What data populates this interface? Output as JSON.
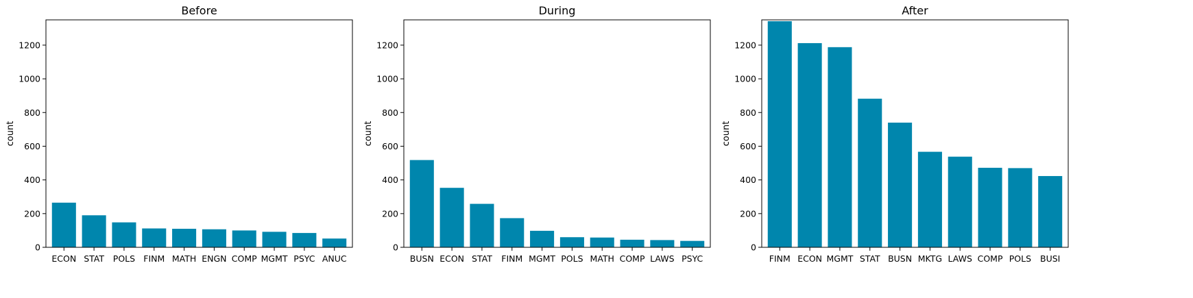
{
  "chart_data": [
    {
      "type": "bar",
      "title": "Before",
      "xlabel": "",
      "ylabel": "count",
      "ylim": [
        0,
        1350
      ],
      "yticks": [
        0,
        200,
        400,
        600,
        800,
        1000,
        1200
      ],
      "grid": false,
      "bar_color": "#0086AD",
      "categories": [
        "ECON",
        "STAT",
        "POLS",
        "FINM",
        "MATH",
        "ENGN",
        "COMP",
        "MGMT",
        "PSYC",
        "ANUC"
      ],
      "values": [
        265,
        190,
        148,
        112,
        110,
        107,
        100,
        92,
        85,
        52
      ]
    },
    {
      "type": "bar",
      "title": "During",
      "xlabel": "",
      "ylabel": "count",
      "ylim": [
        0,
        1350
      ],
      "yticks": [
        0,
        200,
        400,
        600,
        800,
        1000,
        1200
      ],
      "grid": false,
      "bar_color": "#0086AD",
      "categories": [
        "BUSN",
        "ECON",
        "STAT",
        "FINM",
        "MGMT",
        "POLS",
        "MATH",
        "COMP",
        "LAWS",
        "PSYC"
      ],
      "values": [
        518,
        353,
        258,
        173,
        98,
        60,
        58,
        45,
        43,
        38
      ]
    },
    {
      "type": "bar",
      "title": "After",
      "xlabel": "",
      "ylabel": "count",
      "ylim": [
        0,
        1350
      ],
      "yticks": [
        0,
        200,
        400,
        600,
        800,
        1000,
        1200
      ],
      "grid": false,
      "bar_color": "#0086AD",
      "categories": [
        "FINM",
        "ECON",
        "MGMT",
        "STAT",
        "BUSN",
        "MKTG",
        "LAWS",
        "COMP",
        "POLS",
        "BUSI"
      ],
      "values": [
        1342,
        1212,
        1188,
        882,
        740,
        567,
        538,
        472,
        470,
        423
      ]
    }
  ]
}
